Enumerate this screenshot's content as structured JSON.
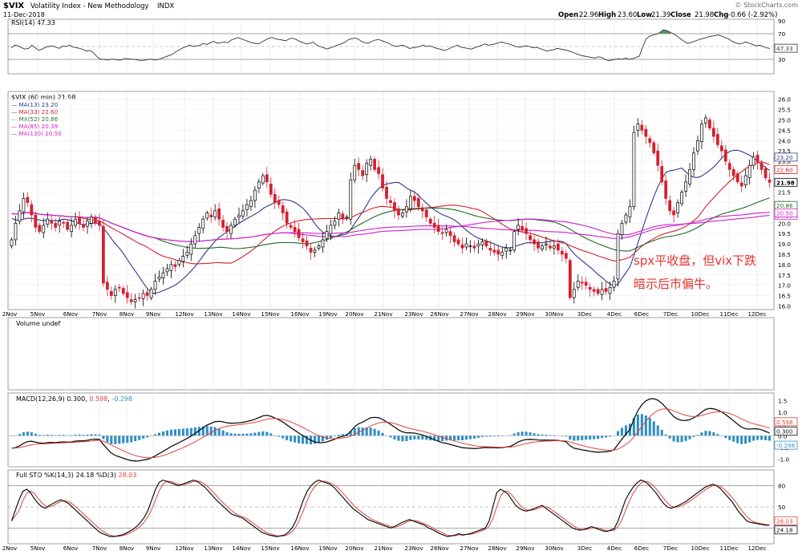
{
  "header": {
    "symbol": "$VIX",
    "name": "Volatility Index - New Methodology",
    "exchange": "INDX",
    "date": "11-Dec-2018",
    "watermark": "© StockCharts.com",
    "open_label": "Open",
    "open": "22.96",
    "high_label": "High",
    "high": "23.60",
    "low_label": "Low",
    "low": "21.39",
    "close_label": "Close",
    "close": "21.98",
    "chg_label": "Chg",
    "chg": "-0.66 (-2.92%)"
  },
  "annotation": {
    "line1": "spx平收盘，但vix下跌",
    "line2": "暗示后市偏牛。",
    "color": "#e8332e"
  },
  "colors": {
    "up": "#000000",
    "down": "#d4202f",
    "ma13": "#2b3a8c",
    "ma33": "#d4202f",
    "ma52": "#1e6b26",
    "ma85": "#cc22cc",
    "ma130": "#cc22cc",
    "macd_hist": "#2f8fc4",
    "signal": "#e0443a",
    "rsi_fill": "#2e7d32"
  },
  "chart_data": [
    {
      "type": "line",
      "panel": "RSI",
      "legend": "RSI(14) 47.33",
      "last_value": "47.33",
      "ylim": [
        10,
        90
      ],
      "ticks": [
        "90",
        "70",
        "50",
        "30"
      ],
      "levels": [
        70,
        30
      ],
      "series": [
        {
          "name": "RSI(14)",
          "values": [
            48,
            52,
            51,
            48,
            46,
            47,
            52,
            48,
            44,
            46,
            49,
            50,
            51,
            49,
            47,
            51,
            50,
            52,
            49,
            48,
            47,
            45,
            43,
            44,
            40,
            34,
            30,
            30,
            29,
            30,
            30,
            29,
            29,
            31,
            31,
            30,
            30,
            29,
            28,
            29,
            30,
            30,
            29,
            30,
            32,
            34,
            36,
            38,
            42,
            45,
            48,
            50,
            52,
            50,
            51,
            52,
            55,
            53,
            56,
            58,
            55,
            56,
            57,
            56,
            60,
            62,
            64,
            62,
            60,
            58,
            56,
            55,
            54,
            57,
            60,
            63,
            64,
            62,
            61,
            60,
            59,
            62,
            63,
            61,
            58,
            56,
            54,
            55,
            57,
            52,
            50,
            48,
            46,
            48,
            50,
            52,
            54,
            56,
            60,
            62,
            63,
            62,
            58,
            56,
            55,
            58,
            60,
            61,
            59,
            57,
            55,
            52,
            50,
            51,
            52,
            50,
            47,
            48,
            49,
            50,
            52,
            50,
            51,
            49,
            47,
            46,
            44,
            45,
            48,
            50,
            52,
            49,
            48,
            47,
            46,
            48,
            50,
            52,
            54,
            52,
            53,
            54,
            56,
            57,
            55,
            54,
            52,
            50,
            49,
            50,
            51,
            50,
            48,
            49,
            47,
            45,
            43,
            44,
            45,
            47,
            46,
            45,
            44,
            42,
            40,
            38,
            36,
            35,
            34,
            33,
            32,
            34,
            33,
            30,
            28,
            29,
            30,
            31,
            30,
            32,
            30,
            31,
            33,
            35,
            50,
            62,
            66,
            68,
            69,
            72,
            76,
            75,
            72,
            70,
            66,
            62,
            58,
            55,
            56,
            58,
            60,
            62,
            63,
            65,
            66,
            67,
            68,
            66,
            64,
            62,
            58,
            56,
            54,
            55,
            57,
            55,
            53,
            51,
            52,
            50,
            48,
            47
          ]
        }
      ]
    },
    {
      "type": "candlestick",
      "panel": "Price",
      "legend_title": "$VIX (60 min) 21.98",
      "ylim": [
        15.9,
        26.3
      ],
      "ticks": [
        "26.0",
        "25.5",
        "25.0",
        "24.5",
        "24.0",
        "23.5",
        "23.0",
        "22.5",
        "22.0",
        "21.5",
        "21.0",
        "20.5",
        "20.0",
        "19.5",
        "19.0",
        "18.5",
        "18.0",
        "17.5",
        "17.0",
        "16.5",
        "16.0"
      ],
      "x_labels": [
        "2Nov",
        "5Nov",
        "6Nov",
        "7Nov",
        "8Nov",
        "9Nov",
        "12Nov",
        "13Nov",
        "14Nov",
        "15Nov",
        "16Nov",
        "19Nov",
        "20Nov",
        "21Nov",
        "23Nov",
        "26Nov",
        "27Nov",
        "28Nov",
        "29Nov",
        "30Nov",
        "3Dec",
        "4Dec",
        "6Dec",
        "7Dec",
        "10Dec",
        "11Dec",
        "12Dec"
      ],
      "closes": [
        19.2,
        20.0,
        20.6,
        21.2,
        21.0,
        20.4,
        19.8,
        19.6,
        19.9,
        20.2,
        20.0,
        19.8,
        20.1,
        20.0,
        19.7,
        19.9,
        20.2,
        20.0,
        19.8,
        20.1,
        20.3,
        20.0,
        19.9,
        17.1,
        16.8,
        16.5,
        16.8,
        16.9,
        16.6,
        16.4,
        16.2,
        16.3,
        16.4,
        16.6,
        16.5,
        16.8,
        17.2,
        17.4,
        17.6,
        17.8,
        18.0,
        17.9,
        18.2,
        18.4,
        18.6,
        19.0,
        19.4,
        19.8,
        20.2,
        20.5,
        20.3,
        20.6,
        20.2,
        19.8,
        19.6,
        19.9,
        20.2,
        20.4,
        20.6,
        20.9,
        21.1,
        21.6,
        22.0,
        22.3,
        22.0,
        21.4,
        21.0,
        20.9,
        20.5,
        20.0,
        19.8,
        19.6,
        19.3,
        19.1,
        18.9,
        18.6,
        18.7,
        18.9,
        19.2,
        19.6,
        19.9,
        20.1,
        20.5,
        20.2,
        20.3,
        22.1,
        22.8,
        22.6,
        22.3,
        22.9,
        23.1,
        22.6,
        22.4,
        21.7,
        21.2,
        21.0,
        20.6,
        20.4,
        20.5,
        20.8,
        21.3,
        21.1,
        20.8,
        20.6,
        20.3,
        20.0,
        19.8,
        19.6,
        19.5,
        19.7,
        19.4,
        19.1,
        19.0,
        18.8,
        19.0,
        18.9,
        18.8,
        19.0,
        19.1,
        18.9,
        18.7,
        18.6,
        18.5,
        18.6,
        18.8,
        18.7,
        19.6,
        19.9,
        19.7,
        19.5,
        19.2,
        19.0,
        18.8,
        18.9,
        19.0,
        18.8,
        18.9,
        18.7,
        18.5,
        18.3,
        16.4,
        16.8,
        17.2,
        17.1,
        17.0,
        16.8,
        16.7,
        16.6,
        16.8,
        16.7,
        16.9,
        17.2,
        19.5,
        20.0,
        20.4,
        20.8,
        24.4,
        24.8,
        24.5,
        24.2,
        23.9,
        23.4,
        22.8,
        22.0,
        21.2,
        20.6,
        20.4,
        21.0,
        21.5,
        22.0,
        22.6,
        23.4,
        24.0,
        24.8,
        25.1,
        24.6,
        24.2,
        23.8,
        23.5,
        23.0,
        22.6,
        22.3,
        22.0,
        21.8,
        22.3,
        22.8,
        23.2,
        22.96,
        22.6,
        22.2,
        21.98
      ],
      "series": [
        {
          "name": "MA(13)",
          "value": "23.20"
        },
        {
          "name": "MA(33)",
          "value": "22.60"
        },
        {
          "name": "MA(52)",
          "value": "20.86"
        },
        {
          "name": "MA(85)",
          "value": "20.39"
        },
        {
          "name": "MA(130)",
          "value": "20.50"
        }
      ],
      "last_close": "21.98"
    },
    {
      "type": "bar",
      "panel": "Volume",
      "legend": "Volume undef",
      "values": []
    },
    {
      "type": "line",
      "panel": "MACD",
      "legend_prefix": "MACD(12,26,9) ",
      "macd": "0.300",
      "signal": "0.598",
      "histogram": "-0.298",
      "ylim": [
        -1.25,
        1.75
      ],
      "ticks": [
        "1.5",
        "1.0",
        "0.5",
        "0.0",
        "-0.5",
        "-1.0"
      ]
    },
    {
      "type": "line",
      "panel": "Full STO",
      "legend_prefix": "Full STO %K(14,3) ",
      "k": "24.18",
      "d": "28.03",
      "ylim": [
        0,
        100
      ],
      "ticks": [
        "80",
        "50",
        "20"
      ],
      "levels": [
        80,
        50,
        20
      ],
      "series": [
        {
          "name": "%K",
          "values": [
            30,
            45,
            60,
            72,
            75,
            70,
            62,
            55,
            50,
            48,
            52,
            55,
            58,
            60,
            58,
            55,
            50,
            45,
            40,
            35,
            30,
            25,
            20,
            15,
            12,
            10,
            8,
            8,
            9,
            10,
            12,
            15,
            18,
            22,
            28,
            35,
            45,
            60,
            75,
            85,
            88,
            86,
            84,
            82,
            80,
            82,
            84,
            86,
            88,
            86,
            82,
            78,
            72,
            66,
            60,
            55,
            50,
            45,
            40,
            38,
            36,
            34,
            30,
            26,
            22,
            18,
            14,
            12,
            10,
            9,
            8,
            9,
            10,
            14,
            20,
            30,
            45,
            60,
            72,
            80,
            85,
            88,
            86,
            84,
            82,
            78,
            72,
            66,
            60,
            54,
            48,
            44,
            40,
            36,
            32,
            30,
            28,
            26,
            24,
            22,
            20,
            22,
            25,
            28,
            30,
            32,
            30,
            28,
            26,
            24,
            20,
            18,
            15,
            12,
            10,
            8,
            9,
            10,
            12,
            10,
            11,
            12,
            14,
            16,
            18,
            20,
            30,
            50,
            70,
            75,
            72,
            68,
            60,
            52,
            48,
            45,
            44,
            46,
            48,
            50,
            52,
            48,
            44,
            40,
            36,
            32,
            28,
            24,
            20,
            18,
            17,
            18,
            20,
            22,
            20,
            18,
            16,
            15,
            17,
            19,
            30,
            45,
            60,
            70,
            78,
            84,
            88,
            86,
            82,
            76,
            70,
            62,
            55,
            50,
            48,
            50,
            52,
            55,
            58,
            62,
            66,
            70,
            74,
            78,
            80,
            82,
            80,
            76,
            70,
            64,
            58,
            50,
            42,
            36,
            30,
            28,
            27,
            26,
            25,
            24,
            24.18
          ]
        }
      ]
    }
  ]
}
